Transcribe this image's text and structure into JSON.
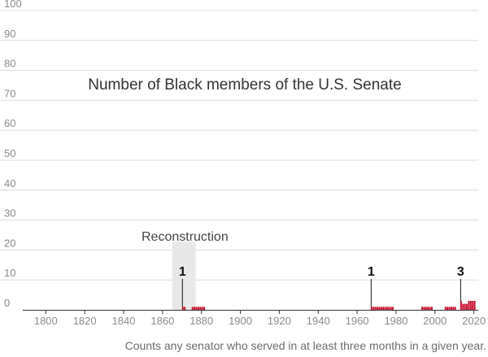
{
  "chart_data": {
    "type": "bar",
    "title": "Number of Black members of the U.S. Senate",
    "xlabel": "",
    "ylabel": "",
    "note": "Counts any senator who served in at least three months in a given year.",
    "xlim": [
      1789,
      2021
    ],
    "ylim": [
      0,
      100
    ],
    "x_ticks": [
      1800,
      1820,
      1840,
      1860,
      1880,
      1900,
      1920,
      1940,
      1960,
      1980,
      2000,
      2020
    ],
    "y_ticks": [
      0,
      10,
      20,
      30,
      40,
      50,
      60,
      70,
      80,
      90,
      100
    ],
    "grid": "horizontal",
    "bar_color": "#c8102e",
    "shaded_region": {
      "label": "Reconstruction",
      "x_start": 1865,
      "x_end": 1877,
      "color": "#e8e8e8"
    },
    "annotations": [
      {
        "x": 1870,
        "y": 1,
        "label": "1"
      },
      {
        "x": 1967,
        "y": 1,
        "label": "1"
      },
      {
        "x": 2013,
        "y": 3,
        "label": "3"
      }
    ],
    "years": [
      1870,
      1871,
      1875,
      1876,
      1877,
      1878,
      1879,
      1880,
      1881,
      1967,
      1968,
      1969,
      1970,
      1971,
      1972,
      1973,
      1974,
      1975,
      1976,
      1977,
      1978,
      1993,
      1994,
      1995,
      1996,
      1997,
      1998,
      2005,
      2006,
      2007,
      2008,
      2009,
      2010,
      2013,
      2014,
      2015,
      2016,
      2017,
      2018,
      2019,
      2020
    ],
    "values": [
      1,
      1,
      1,
      1,
      1,
      1,
      1,
      1,
      1,
      1,
      1,
      1,
      1,
      1,
      1,
      1,
      1,
      1,
      1,
      1,
      1,
      1,
      1,
      1,
      1,
      1,
      1,
      1,
      1,
      1,
      1,
      1,
      1,
      3,
      2,
      2,
      2,
      3,
      3,
      3,
      3
    ]
  }
}
